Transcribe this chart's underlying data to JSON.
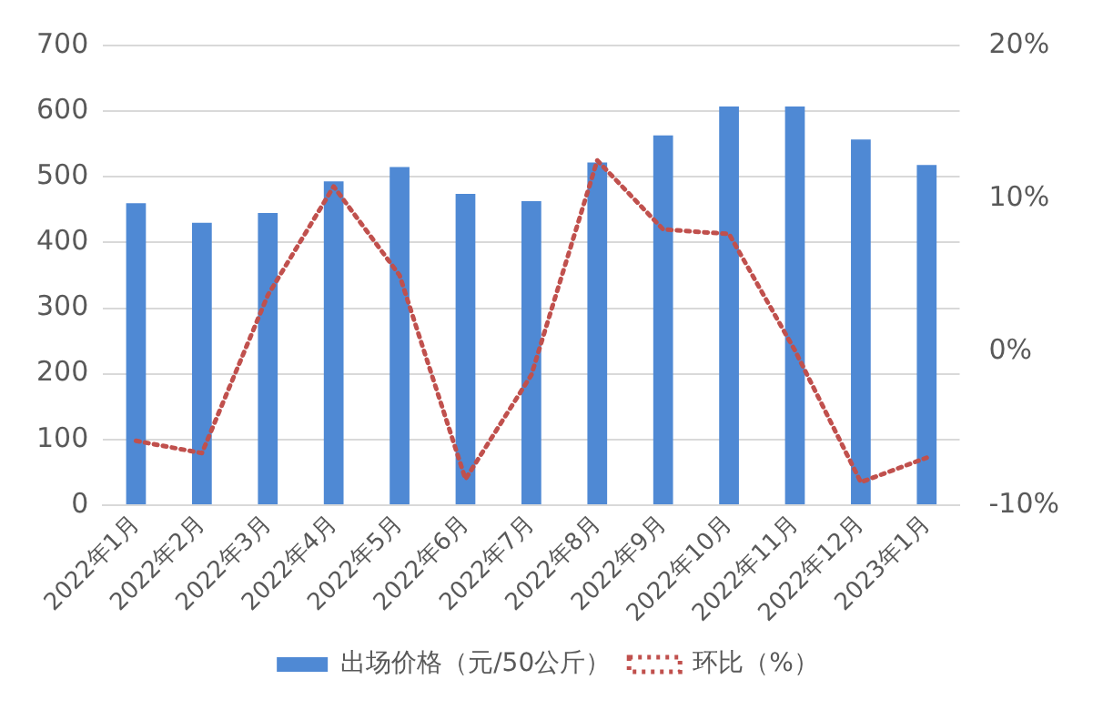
{
  "chart_data": {
    "type": "bar",
    "categories": [
      "2022年1月",
      "2022年2月",
      "2022年3月",
      "2022年4月",
      "2022年5月",
      "2022年6月",
      "2022年7月",
      "2022年8月",
      "2022年9月",
      "2022年10月",
      "2022年11月",
      "2022年12月",
      "2023年1月"
    ],
    "series": [
      {
        "name": "出场价格（元/50公斤）",
        "color": "#4f89d4",
        "values": [
          460,
          430,
          445,
          493,
          515,
          474,
          463,
          522,
          563,
          607,
          607,
          557,
          518
        ]
      },
      {
        "name": "环比（%）",
        "type": "line",
        "axis": "y2",
        "color": "#c0504d",
        "line_style": "dotted",
        "marker": "none",
        "values": [
          -5.8,
          -6.6,
          3.7,
          10.8,
          5,
          -8.3,
          -1.5,
          12.5,
          8,
          7.7,
          0.1,
          -8.5,
          -6.9
        ]
      }
    ],
    "ylim": [
      0,
      700
    ],
    "yticks": [
      0,
      100,
      200,
      300,
      400,
      500,
      600,
      700
    ],
    "y2lim": [
      -10,
      20
    ],
    "y2ticks": [
      {
        "value": -10,
        "label": "-10%"
      },
      {
        "value": 0,
        "label": "0%"
      },
      {
        "value": 10,
        "label": "10%"
      },
      {
        "value": 20,
        "label": "20%"
      }
    ],
    "grid": "y",
    "legend": "bottom"
  }
}
